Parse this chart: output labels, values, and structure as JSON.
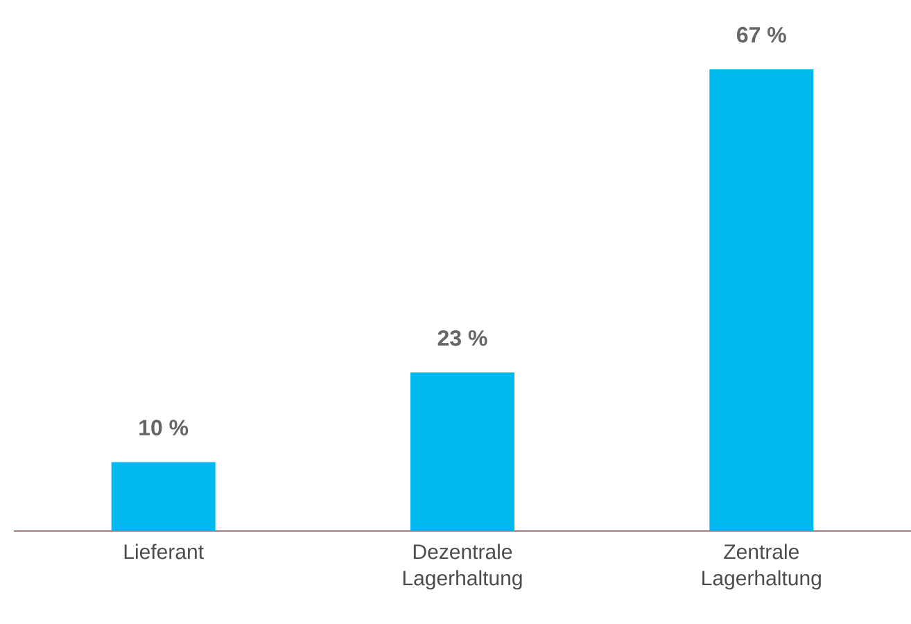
{
  "chart_data": {
    "type": "bar",
    "categories": [
      "Lieferant",
      "Dezentrale Lagerhaltung",
      "Zentrale Lagerhaltung"
    ],
    "values": [
      10,
      23,
      67
    ],
    "value_labels": [
      "10 %",
      "23 %",
      "67 %"
    ],
    "color": "#00b9ef"
  }
}
